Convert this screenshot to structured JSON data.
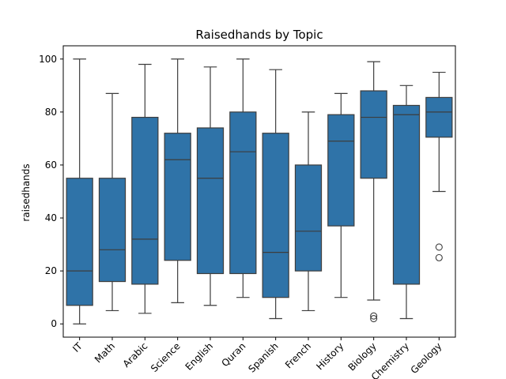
{
  "chart_data": {
    "type": "box",
    "title": "Raisedhands by Topic",
    "xlabel": "",
    "ylabel": "raisedhands",
    "ylim": [
      -5,
      105
    ],
    "yticks": [
      0,
      20,
      40,
      60,
      80,
      100
    ],
    "color": "#2f73a8",
    "categories": [
      "IT",
      "Math",
      "Arabic",
      "Science",
      "English",
      "Quran",
      "Spanish",
      "French",
      "History",
      "Biology",
      "Chemistry",
      "Geology"
    ],
    "boxes": [
      {
        "category": "IT",
        "min": 0,
        "q1": 7,
        "median": 20,
        "q3": 55,
        "max": 100,
        "outliers": []
      },
      {
        "category": "Math",
        "min": 5,
        "q1": 16,
        "median": 28,
        "q3": 55,
        "max": 87,
        "outliers": []
      },
      {
        "category": "Arabic",
        "min": 4,
        "q1": 15,
        "median": 32,
        "q3": 78,
        "max": 98,
        "outliers": []
      },
      {
        "category": "Science",
        "min": 8,
        "q1": 24,
        "median": 62,
        "q3": 72,
        "max": 100,
        "outliers": []
      },
      {
        "category": "English",
        "min": 7,
        "q1": 19,
        "median": 55,
        "q3": 74,
        "max": 97,
        "outliers": []
      },
      {
        "category": "Quran",
        "min": 10,
        "q1": 19,
        "median": 65,
        "q3": 80,
        "max": 100,
        "outliers": []
      },
      {
        "category": "Spanish",
        "min": 2,
        "q1": 10,
        "median": 27,
        "q3": 72,
        "max": 96,
        "outliers": []
      },
      {
        "category": "French",
        "min": 5,
        "q1": 20,
        "median": 35,
        "q3": 60,
        "max": 80,
        "outliers": []
      },
      {
        "category": "History",
        "min": 10,
        "q1": 37,
        "median": 69,
        "q3": 79,
        "max": 87,
        "outliers": []
      },
      {
        "category": "Biology",
        "min": 9,
        "q1": 55,
        "median": 78,
        "q3": 88,
        "max": 99,
        "outliers": [
          2,
          3
        ]
      },
      {
        "category": "Chemistry",
        "min": 2,
        "q1": 15,
        "median": 79,
        "q3": 82.5,
        "max": 90,
        "outliers": []
      },
      {
        "category": "Geology",
        "min": 50,
        "q1": 70.5,
        "median": 80,
        "q3": 85.5,
        "max": 95,
        "outliers": [
          25,
          29
        ]
      }
    ]
  }
}
